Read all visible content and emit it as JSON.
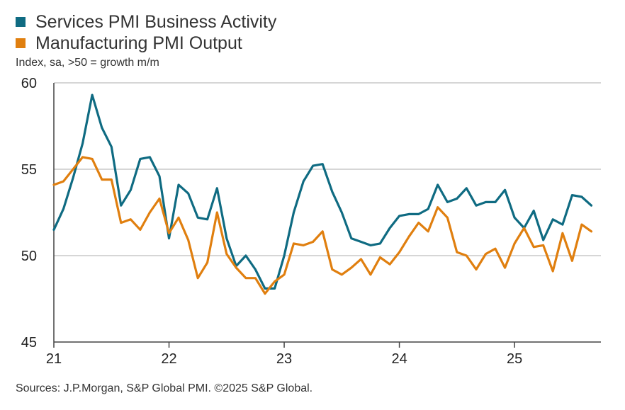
{
  "chart_data": {
    "type": "line",
    "subtitle": "Index, sa, >50 = growth m/m",
    "source": "Sources: J.P.Morgan, S&P Global PMI. ©2025 S&P Global.",
    "ylim": [
      45,
      60
    ],
    "y_ticks": [
      "45",
      "50",
      "55",
      "60"
    ],
    "x_ticks": [
      "21",
      "22",
      "23",
      "24",
      "25"
    ],
    "x_range": [
      2021.0,
      2025.75
    ],
    "grid": "horizontal",
    "legend_position": "top-left",
    "series": [
      {
        "name": "Services PMI Business Activity",
        "color": "#0f6b82",
        "points": [
          [
            2021.0,
            51.5
          ],
          [
            2021.083,
            52.7
          ],
          [
            2021.167,
            54.5
          ],
          [
            2021.25,
            56.5
          ],
          [
            2021.333,
            59.3
          ],
          [
            2021.417,
            57.4
          ],
          [
            2021.5,
            56.3
          ],
          [
            2021.583,
            52.9
          ],
          [
            2021.667,
            53.8
          ],
          [
            2021.75,
            55.6
          ],
          [
            2021.833,
            55.7
          ],
          [
            2021.917,
            54.6
          ],
          [
            2022.0,
            51.0
          ],
          [
            2022.083,
            54.1
          ],
          [
            2022.167,
            53.6
          ],
          [
            2022.25,
            52.2
          ],
          [
            2022.333,
            52.1
          ],
          [
            2022.417,
            53.9
          ],
          [
            2022.5,
            51.0
          ],
          [
            2022.583,
            49.4
          ],
          [
            2022.667,
            50.0
          ],
          [
            2022.75,
            49.2
          ],
          [
            2022.833,
            48.1
          ],
          [
            2022.917,
            48.1
          ],
          [
            2023.0,
            50.0
          ],
          [
            2023.083,
            52.5
          ],
          [
            2023.167,
            54.3
          ],
          [
            2023.25,
            55.2
          ],
          [
            2023.333,
            55.3
          ],
          [
            2023.417,
            53.7
          ],
          [
            2023.5,
            52.5
          ],
          [
            2023.583,
            51.0
          ],
          [
            2023.667,
            50.8
          ],
          [
            2023.75,
            50.6
          ],
          [
            2023.833,
            50.7
          ],
          [
            2023.917,
            51.6
          ],
          [
            2024.0,
            52.3
          ],
          [
            2024.083,
            52.4
          ],
          [
            2024.167,
            52.4
          ],
          [
            2024.25,
            52.7
          ],
          [
            2024.333,
            54.1
          ],
          [
            2024.417,
            53.1
          ],
          [
            2024.5,
            53.3
          ],
          [
            2024.583,
            53.9
          ],
          [
            2024.667,
            52.9
          ],
          [
            2024.75,
            53.1
          ],
          [
            2024.833,
            53.1
          ],
          [
            2024.917,
            53.8
          ],
          [
            2025.0,
            52.2
          ],
          [
            2025.083,
            51.6
          ],
          [
            2025.167,
            52.6
          ],
          [
            2025.25,
            50.9
          ],
          [
            2025.333,
            52.1
          ],
          [
            2025.417,
            51.8
          ],
          [
            2025.5,
            53.5
          ],
          [
            2025.583,
            53.4
          ],
          [
            2025.667,
            52.9
          ]
        ]
      },
      {
        "name": "Manufacturing PMI Output",
        "color": "#e07f0f",
        "points": [
          [
            2021.0,
            54.1
          ],
          [
            2021.083,
            54.3
          ],
          [
            2021.167,
            55.0
          ],
          [
            2021.25,
            55.7
          ],
          [
            2021.333,
            55.6
          ],
          [
            2021.417,
            54.4
          ],
          [
            2021.5,
            54.4
          ],
          [
            2021.583,
            51.9
          ],
          [
            2021.667,
            52.1
          ],
          [
            2021.75,
            51.5
          ],
          [
            2021.833,
            52.5
          ],
          [
            2021.917,
            53.3
          ],
          [
            2022.0,
            51.3
          ],
          [
            2022.083,
            52.2
          ],
          [
            2022.167,
            50.9
          ],
          [
            2022.25,
            48.7
          ],
          [
            2022.333,
            49.6
          ],
          [
            2022.417,
            52.5
          ],
          [
            2022.5,
            50.1
          ],
          [
            2022.583,
            49.3
          ],
          [
            2022.667,
            48.7
          ],
          [
            2022.75,
            48.7
          ],
          [
            2022.833,
            47.8
          ],
          [
            2022.917,
            48.5
          ],
          [
            2023.0,
            48.9
          ],
          [
            2023.083,
            50.7
          ],
          [
            2023.167,
            50.6
          ],
          [
            2023.25,
            50.8
          ],
          [
            2023.333,
            51.4
          ],
          [
            2023.417,
            49.2
          ],
          [
            2023.5,
            48.9
          ],
          [
            2023.583,
            49.3
          ],
          [
            2023.667,
            49.8
          ],
          [
            2023.75,
            48.9
          ],
          [
            2023.833,
            49.9
          ],
          [
            2023.917,
            49.5
          ],
          [
            2024.0,
            50.2
          ],
          [
            2024.083,
            51.1
          ],
          [
            2024.167,
            51.9
          ],
          [
            2024.25,
            51.4
          ],
          [
            2024.333,
            52.8
          ],
          [
            2024.417,
            52.2
          ],
          [
            2024.5,
            50.2
          ],
          [
            2024.583,
            50.0
          ],
          [
            2024.667,
            49.2
          ],
          [
            2024.75,
            50.1
          ],
          [
            2024.833,
            50.4
          ],
          [
            2024.917,
            49.3
          ],
          [
            2025.0,
            50.7
          ],
          [
            2025.083,
            51.6
          ],
          [
            2025.167,
            50.5
          ],
          [
            2025.25,
            50.6
          ],
          [
            2025.333,
            49.1
          ],
          [
            2025.417,
            51.3
          ],
          [
            2025.5,
            49.7
          ],
          [
            2025.583,
            51.8
          ],
          [
            2025.667,
            51.4
          ]
        ]
      }
    ]
  }
}
